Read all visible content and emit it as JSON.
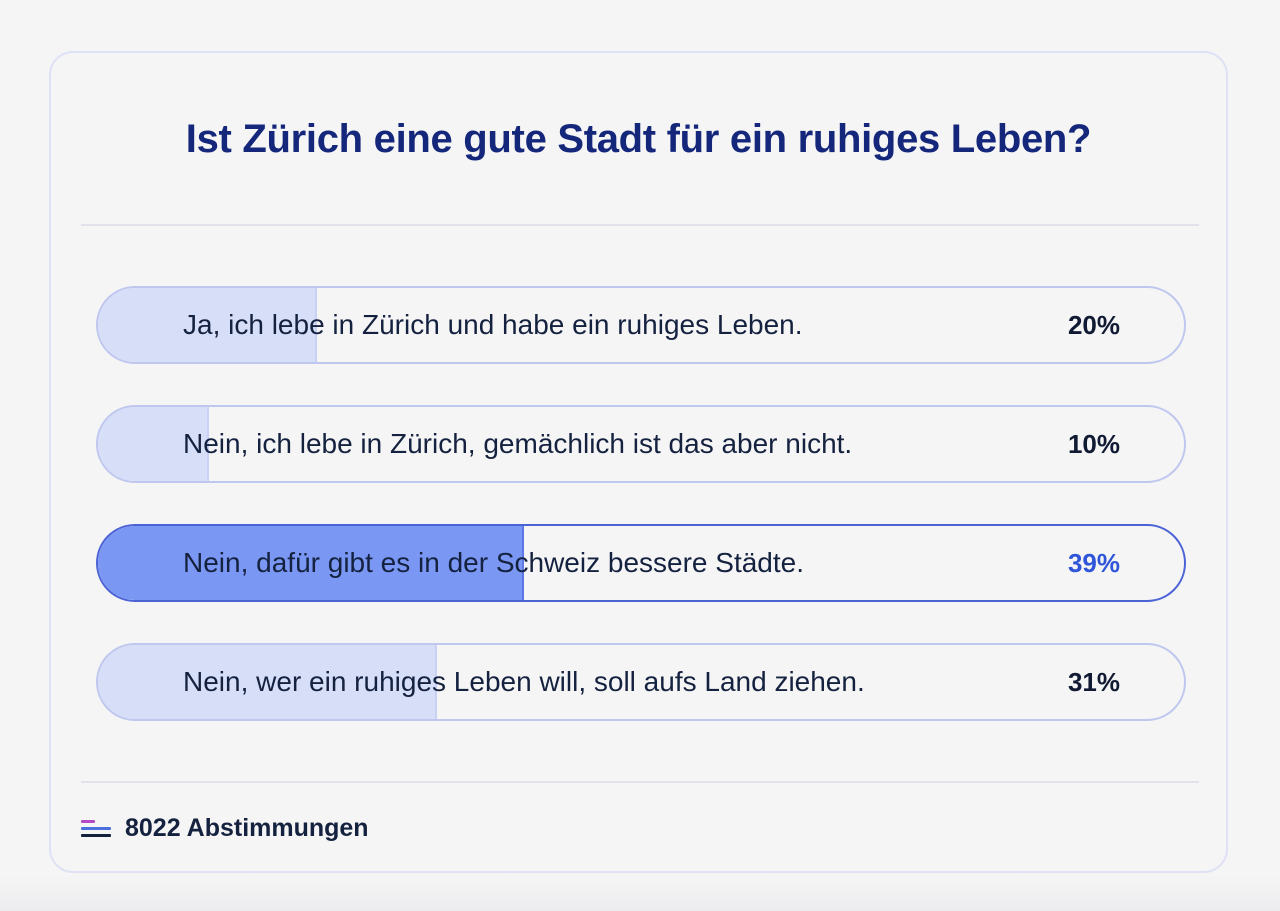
{
  "poll": {
    "question": "Ist Zürich eine gute Stadt für ein ruhiges Leben?",
    "options": [
      {
        "label": "Ja, ich lebe in Zürich und habe ein ruhiges Leben.",
        "percent_label": "20%",
        "share": 0.2,
        "selected": false
      },
      {
        "label": "Nein, ich lebe in Zürich, gemächlich ist das aber nicht.",
        "percent_label": "10%",
        "share": 0.1,
        "selected": false
      },
      {
        "label": "Nein, dafür gibt es in der Schweiz bessere Städte.",
        "percent_label": "39%",
        "share": 0.39,
        "selected": true
      },
      {
        "label": "Nein, wer ein ruhiges Leben will, soll aufs Land ziehen.",
        "percent_label": "31%",
        "share": 0.31,
        "selected": false
      }
    ],
    "votes_label": "8022 Abstimmungen",
    "icon": "poll-results-icon"
  },
  "colors": {
    "title": "#15277a",
    "selected_fill": "#7b97f4",
    "fill": "#d6def8",
    "selected_border": "#4c63d6",
    "selected_percent": "#2f56d8"
  }
}
